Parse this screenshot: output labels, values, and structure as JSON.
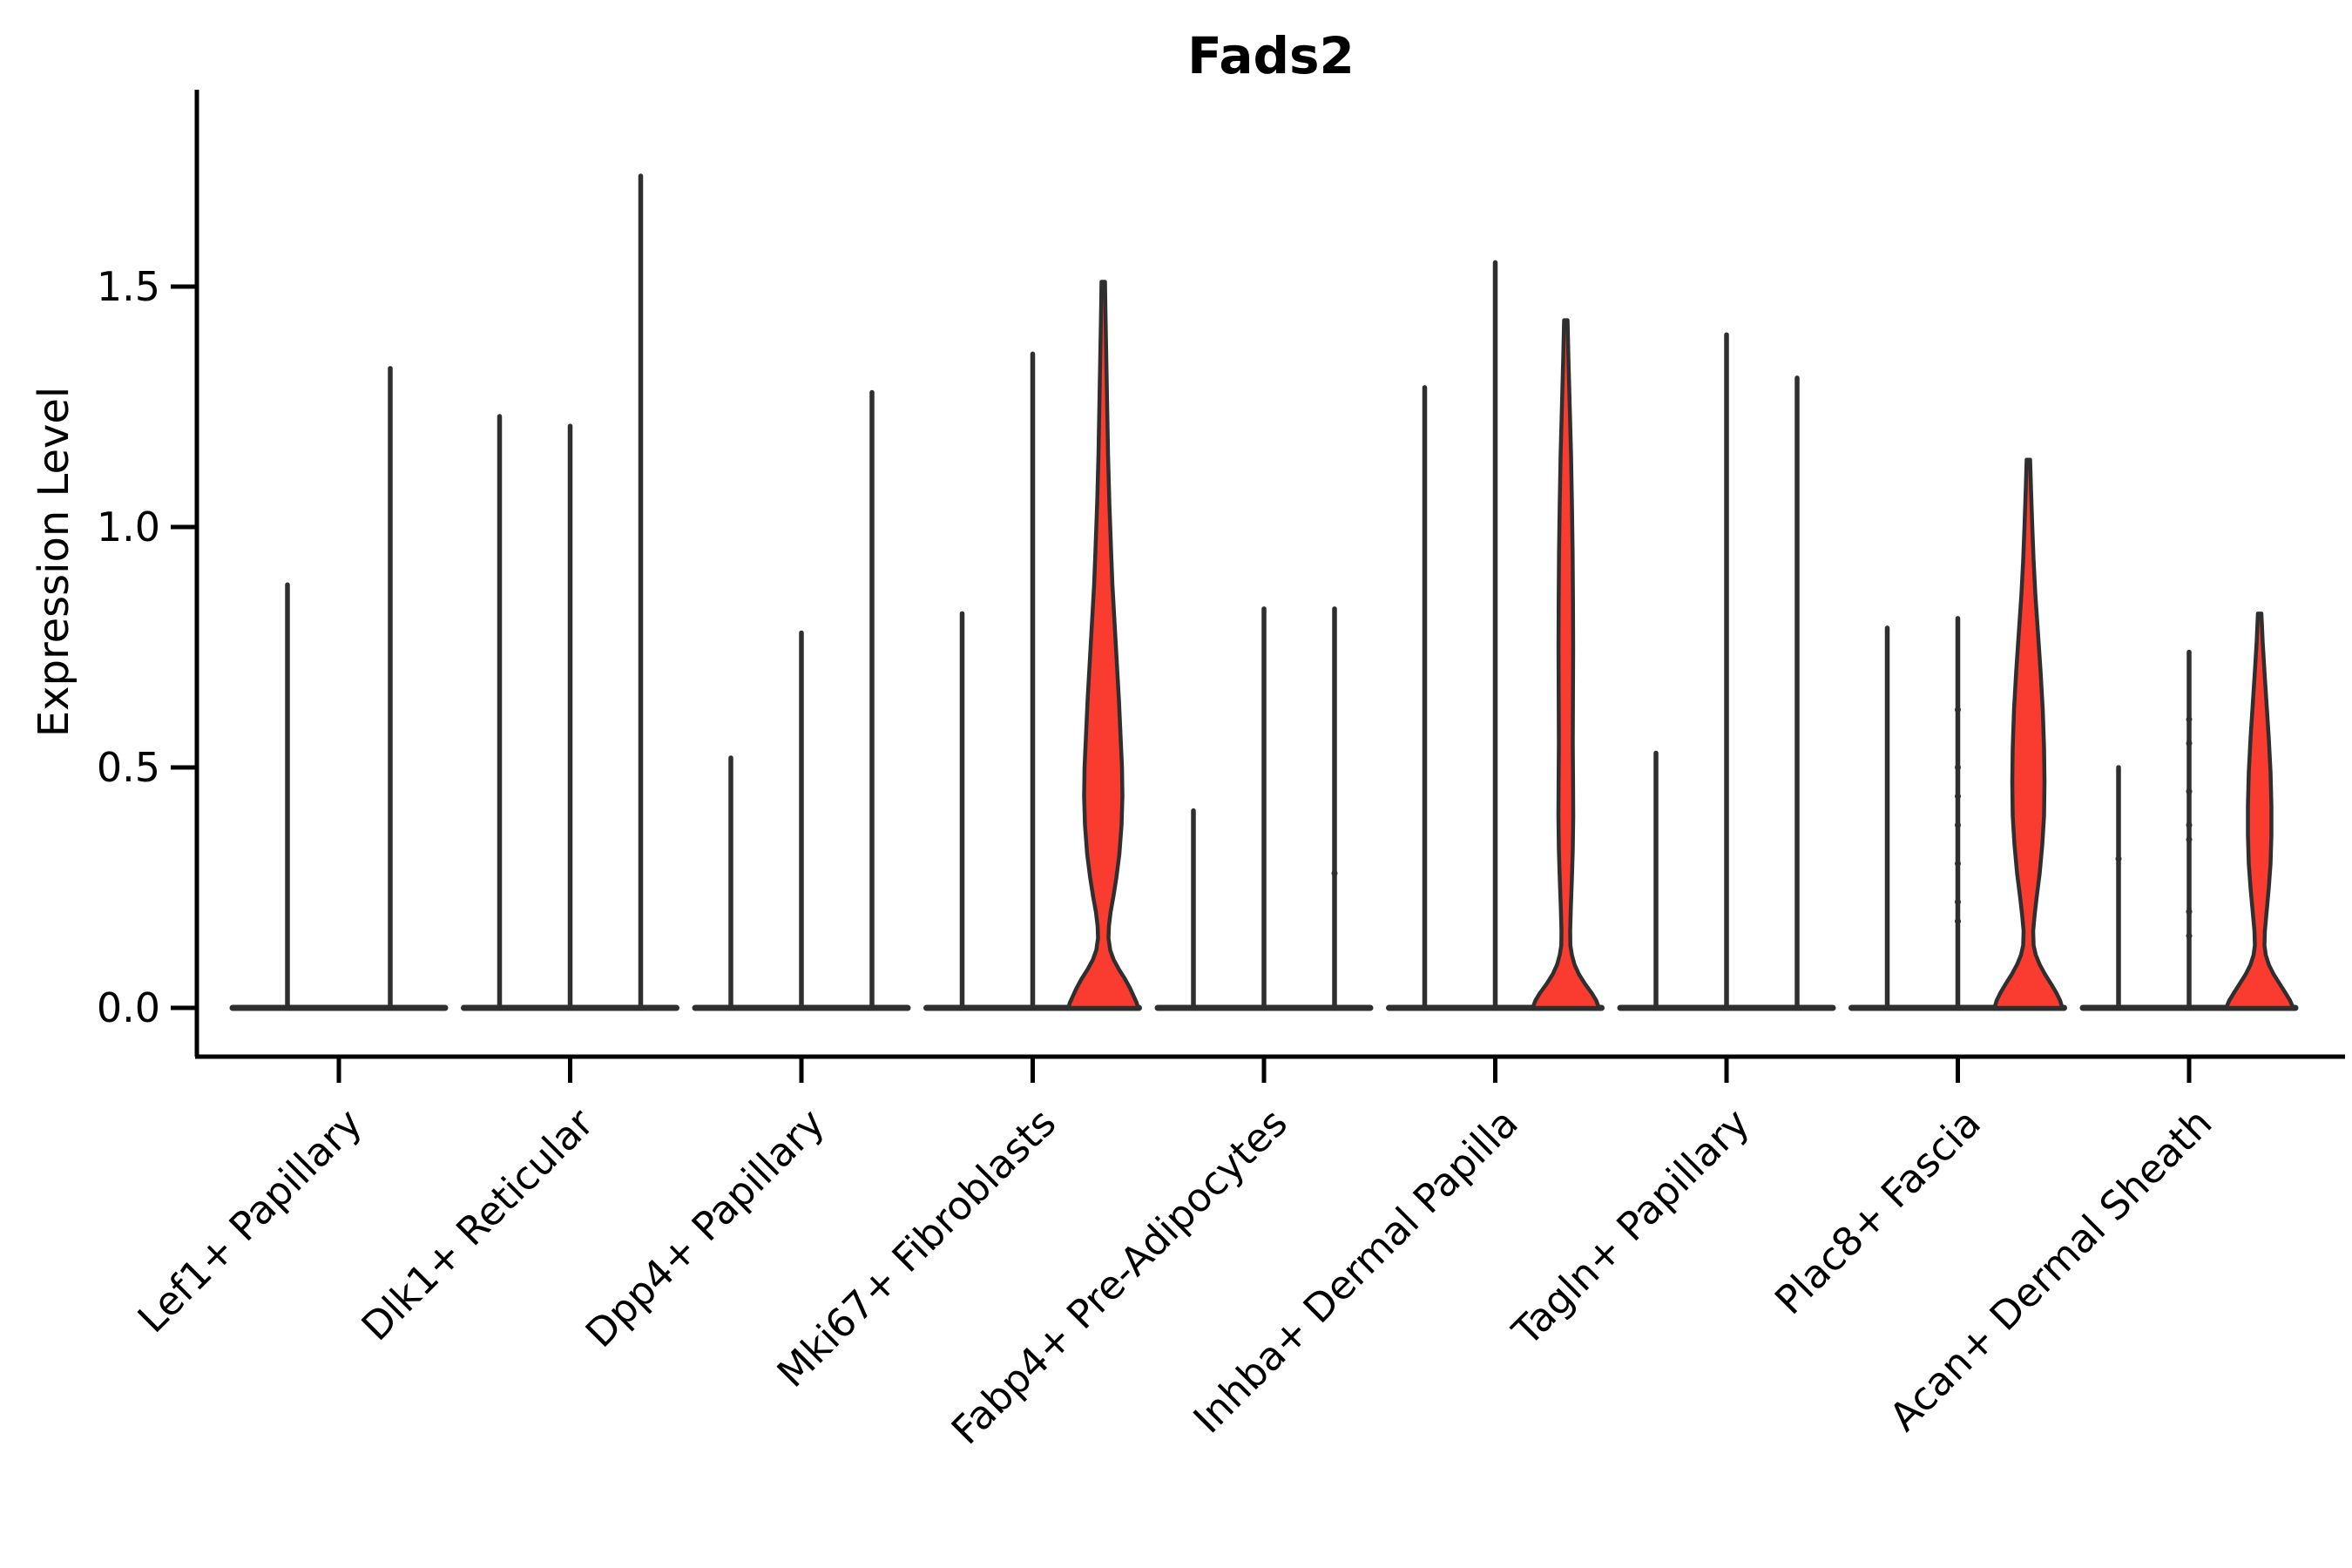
{
  "title": "Fads2",
  "ylabel": "Expression Level",
  "colors": {
    "violin_fill_red": "#f93b30",
    "violin_stroke": "#2f2f2f",
    "axis_color": "#000000",
    "background": "#ffffff"
  },
  "chart_data": {
    "type": "violin",
    "title": "Fads2",
    "xlabel": "",
    "ylabel": "Expression Level",
    "ylim": [
      -0.05,
      1.8
    ],
    "grid": false,
    "legend": "none",
    "yticks": [
      0.0,
      0.5,
      1.0,
      1.5
    ],
    "ytick_labels": [
      "0.0",
      "0.5",
      "1.0",
      "1.5"
    ],
    "categories": [
      "Lef1+ Papillary",
      "Dlk1+ Reticular",
      "Dpp4+ Papillary",
      "Mki67+ Fibroblasts",
      "Fabp4+ Pre-Adipocytes",
      "Inhba+ Dermal Papilla",
      "Tagln+ Papillary",
      "Plac8+ Fascia",
      "Acan+ Dermal Sheath"
    ],
    "groups": [
      {
        "label": "Lef1+ Papillary",
        "violins": [
          {
            "offset": -59,
            "max": 0.88,
            "style": "spike"
          },
          {
            "offset": 59,
            "max": 1.33,
            "style": "spike"
          }
        ]
      },
      {
        "label": "Dlk1+ Reticular",
        "violins": [
          {
            "offset": -81,
            "max": 1.23,
            "style": "spike"
          },
          {
            "offset": 0,
            "max": 1.21,
            "style": "spike"
          },
          {
            "offset": 81,
            "max": 1.73,
            "style": "spike"
          }
        ]
      },
      {
        "label": "Dpp4+ Papillary",
        "violins": [
          {
            "offset": -81,
            "max": 0.52,
            "style": "spike"
          },
          {
            "offset": 0,
            "max": 0.78,
            "style": "spike"
          },
          {
            "offset": 81,
            "max": 1.28,
            "style": "spike"
          }
        ]
      },
      {
        "label": "Mki67+ Fibroblasts",
        "violins": [
          {
            "offset": -81,
            "max": 0.82,
            "style": "spike"
          },
          {
            "offset": 0,
            "max": 1.36,
            "style": "spike"
          },
          {
            "offset": 81,
            "max": 1.51,
            "style": "violin",
            "fill": "red",
            "profile": [
              [
                1.51,
                2
              ],
              [
                1.45,
                2.5
              ],
              [
                1.35,
                3.5
              ],
              [
                1.25,
                4.5
              ],
              [
                1.15,
                5.5
              ],
              [
                1.05,
                7
              ],
              [
                0.95,
                9
              ],
              [
                0.88,
                10.5
              ],
              [
                0.8,
                13
              ],
              [
                0.72,
                15.5
              ],
              [
                0.64,
                18
              ],
              [
                0.56,
                20
              ],
              [
                0.5,
                21.5
              ],
              [
                0.44,
                22
              ],
              [
                0.38,
                21
              ],
              [
                0.32,
                18.5
              ],
              [
                0.27,
                15
              ],
              [
                0.23,
                11.5
              ],
              [
                0.2,
                8.5
              ],
              [
                0.17,
                6.5
              ],
              [
                0.145,
                6
              ],
              [
                0.12,
                8
              ],
              [
                0.1,
                12
              ],
              [
                0.08,
                18
              ],
              [
                0.06,
                25
              ],
              [
                0.04,
                31
              ],
              [
                0.02,
                36
              ],
              [
                0.01,
                38.5
              ],
              [
                0.0,
                40
              ]
            ]
          }
        ]
      },
      {
        "label": "Fabp4+ Pre-Adipocytes",
        "violins": [
          {
            "offset": -81,
            "max": 0.41,
            "style": "spike"
          },
          {
            "offset": 0,
            "max": 0.83,
            "style": "spike"
          },
          {
            "offset": 81,
            "max": 0.83,
            "style": "spike",
            "dots": [
              0.28
            ]
          }
        ]
      },
      {
        "label": "Inhba+ Dermal Papilla",
        "violins": [
          {
            "offset": -81,
            "max": 1.29,
            "style": "spike"
          },
          {
            "offset": 0,
            "max": 1.55,
            "style": "spike"
          },
          {
            "offset": 81,
            "max": 1.43,
            "style": "violin",
            "fill": "red",
            "profile": [
              [
                1.43,
                2
              ],
              [
                1.35,
                3
              ],
              [
                1.25,
                4.5
              ],
              [
                1.15,
                6
              ],
              [
                1.05,
                7
              ],
              [
                0.95,
                7.8
              ],
              [
                0.85,
                8.2
              ],
              [
                0.75,
                8.4
              ],
              [
                0.65,
                8.2
              ],
              [
                0.55,
                8
              ],
              [
                0.47,
                8.3
              ],
              [
                0.4,
                8.5
              ],
              [
                0.33,
                8
              ],
              [
                0.27,
                7
              ],
              [
                0.21,
                5.8
              ],
              [
                0.16,
                5
              ],
              [
                0.13,
                5.2
              ],
              [
                0.11,
                7
              ],
              [
                0.09,
                10
              ],
              [
                0.07,
                15
              ],
              [
                0.05,
                22
              ],
              [
                0.03,
                30
              ],
              [
                0.015,
                35
              ],
              [
                0.0,
                38
              ]
            ]
          }
        ]
      },
      {
        "label": "Tagln+ Papillary",
        "violins": [
          {
            "offset": -81,
            "max": 0.53,
            "style": "spike"
          },
          {
            "offset": 0,
            "max": 1.4,
            "style": "spike"
          },
          {
            "offset": 81,
            "max": 1.31,
            "style": "spike"
          }
        ]
      },
      {
        "label": "Plac8+ Fascia",
        "violins": [
          {
            "offset": -81,
            "max": 0.79,
            "style": "spike"
          },
          {
            "offset": 0,
            "max": 0.81,
            "style": "spike",
            "dots": [
              0.62,
              0.5,
              0.44,
              0.38,
              0.3,
              0.22,
              0.18
            ]
          },
          {
            "offset": 81,
            "max": 1.14,
            "style": "violin",
            "fill": "red",
            "profile": [
              [
                1.14,
                2
              ],
              [
                1.08,
                3
              ],
              [
                1.0,
                4.5
              ],
              [
                0.93,
                6
              ],
              [
                0.86,
                8
              ],
              [
                0.78,
                11
              ],
              [
                0.7,
                14
              ],
              [
                0.62,
                16.5
              ],
              [
                0.54,
                18
              ],
              [
                0.47,
                18.5
              ],
              [
                0.4,
                18
              ],
              [
                0.34,
                16
              ],
              [
                0.28,
                13
              ],
              [
                0.23,
                9.5
              ],
              [
                0.19,
                7
              ],
              [
                0.16,
                5.5
              ],
              [
                0.13,
                6
              ],
              [
                0.11,
                8.5
              ],
              [
                0.09,
                13
              ],
              [
                0.07,
                19
              ],
              [
                0.05,
                26
              ],
              [
                0.03,
                32.5
              ],
              [
                0.015,
                36.5
              ],
              [
                0.0,
                39
              ]
            ]
          }
        ]
      },
      {
        "label": "Acan+ Dermal Sheath",
        "violins": [
          {
            "offset": -81,
            "max": 0.5,
            "style": "spike",
            "dots": [
              0.31
            ]
          },
          {
            "offset": 0,
            "max": 0.74,
            "style": "spike",
            "dots": [
              0.6,
              0.55,
              0.45,
              0.38,
              0.35,
              0.2,
              0.15
            ]
          },
          {
            "offset": 81,
            "max": 0.82,
            "style": "violin",
            "fill": "red",
            "profile": [
              [
                0.82,
                2
              ],
              [
                0.76,
                3.5
              ],
              [
                0.7,
                5.5
              ],
              [
                0.63,
                8
              ],
              [
                0.56,
                10.5
              ],
              [
                0.49,
                12.5
              ],
              [
                0.42,
                13.5
              ],
              [
                0.36,
                13.5
              ],
              [
                0.3,
                12.5
              ],
              [
                0.25,
                10.5
              ],
              [
                0.2,
                8
              ],
              [
                0.16,
                6
              ],
              [
                0.13,
                5.5
              ],
              [
                0.11,
                7
              ],
              [
                0.09,
                10.5
              ],
              [
                0.07,
                16
              ],
              [
                0.05,
                23
              ],
              [
                0.03,
                30
              ],
              [
                0.015,
                35
              ],
              [
                0.0,
                38.5
              ]
            ]
          }
        ]
      }
    ]
  }
}
